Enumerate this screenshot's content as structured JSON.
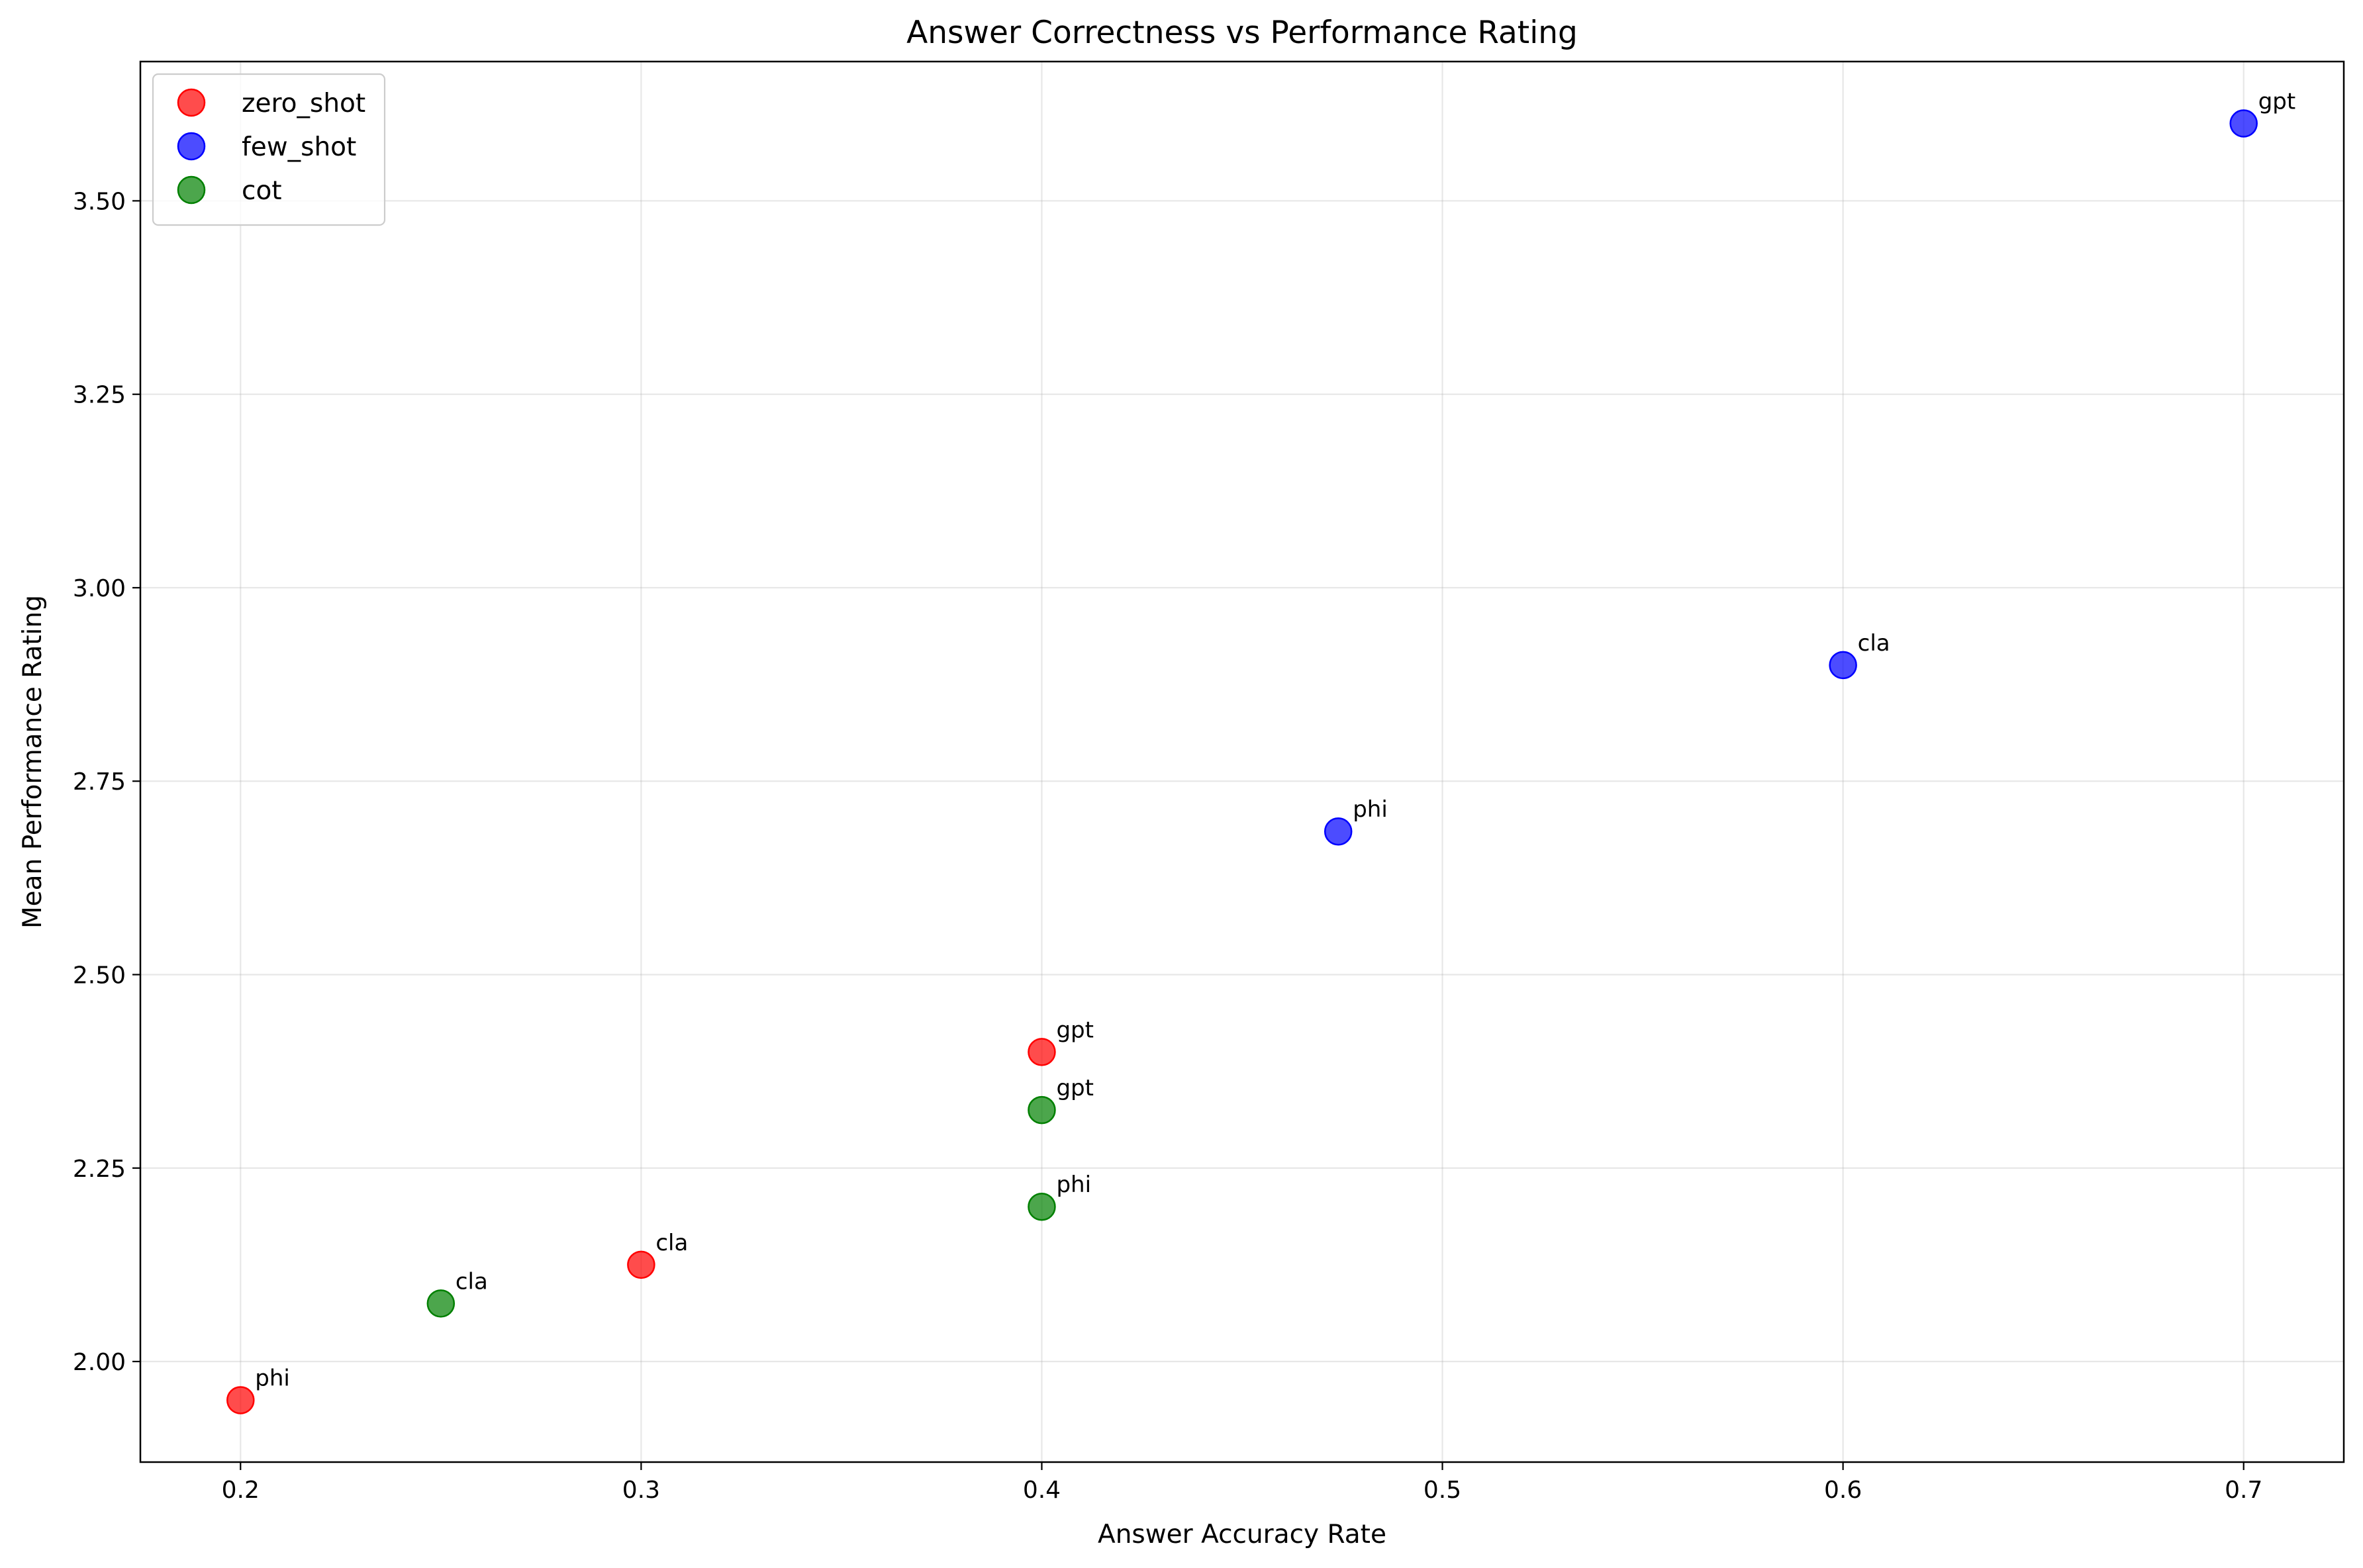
{
  "chart_data": {
    "type": "scatter",
    "title": "Answer Correctness vs Performance Rating",
    "xlabel": "Answer Accuracy Rate",
    "ylabel": "Mean Performance Rating",
    "xlim": [
      0.175,
      0.725
    ],
    "ylim": [
      1.87,
      3.68
    ],
    "xticks": [
      "0.2",
      "0.3",
      "0.4",
      "0.5",
      "0.6",
      "0.7"
    ],
    "yticks": [
      "2.00",
      "2.25",
      "2.50",
      "2.75",
      "3.00",
      "3.25",
      "3.50"
    ],
    "grid": true,
    "legend_position": "top-left",
    "series": [
      {
        "name": "zero_shot",
        "color": "#ff0000",
        "points": [
          {
            "label": "phi",
            "x": 0.2,
            "y": 1.95
          },
          {
            "label": "cla",
            "x": 0.3,
            "y": 2.125
          },
          {
            "label": "gpt",
            "x": 0.4,
            "y": 2.4
          }
        ]
      },
      {
        "name": "few_shot",
        "color": "#0000ff",
        "points": [
          {
            "label": "phi",
            "x": 0.474,
            "y": 2.685
          },
          {
            "label": "cla",
            "x": 0.6,
            "y": 2.9
          },
          {
            "label": "gpt",
            "x": 0.7,
            "y": 3.6
          }
        ]
      },
      {
        "name": "cot",
        "color": "#008000",
        "points": [
          {
            "label": "cla",
            "x": 0.25,
            "y": 2.075
          },
          {
            "label": "phi",
            "x": 0.4,
            "y": 2.2
          },
          {
            "label": "gpt",
            "x": 0.4,
            "y": 2.325
          }
        ]
      }
    ]
  }
}
